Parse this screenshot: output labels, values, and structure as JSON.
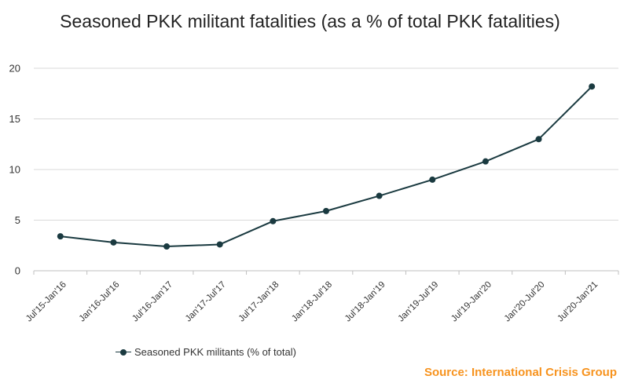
{
  "chart_data": {
    "type": "line",
    "title": "Seasoned PKK militant fatalities (as a % of total PKK fatalities)",
    "categories": [
      "Jul'15-Jan'16",
      "Jan'16-Jul'16",
      "Jul'16-Jan'17",
      "Jan'17-Jul'17",
      "Jul'17-Jan'18",
      "Jan'18-Jul'18",
      "Jul'18-Jan'19",
      "Jan'19-Jul'19",
      "Jul'19-Jan'20",
      "Jan'20-Jul'20",
      "Jul'20-Jan'21"
    ],
    "series": [
      {
        "name": "Seasoned PKK militants (% of total)",
        "values": [
          3.4,
          2.8,
          2.4,
          2.6,
          4.9,
          5.9,
          7.4,
          9.0,
          10.8,
          13.0,
          18.2
        ],
        "color": "#1a3a40"
      }
    ],
    "yticks": [
      0,
      5,
      10,
      15,
      20
    ],
    "ylim": [
      0,
      20
    ],
    "grid": true,
    "legend_position": "bottom-left"
  },
  "source": "Source: International Crisis Group",
  "colors": {
    "line": "#1a3a40",
    "grid": "#d9d9d9",
    "source": "#f7931e"
  }
}
